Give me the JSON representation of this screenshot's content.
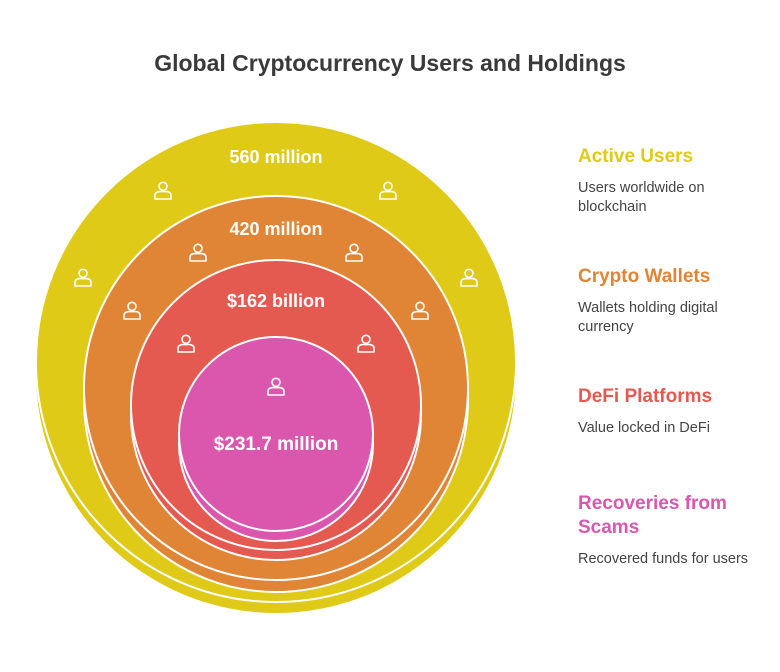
{
  "title": "Global Cryptocurrency Users and Holdings",
  "colors": {
    "active_users": "#DECA17",
    "crypto_wallets": "#E08435",
    "defi_platforms": "#E45A51",
    "recoveries": "#DB57AE"
  },
  "rings": [
    {
      "key": "active_users",
      "value_label": "560 million",
      "icon": "user-icon"
    },
    {
      "key": "crypto_wallets",
      "value_label": "420 million",
      "icon": "user-icon"
    },
    {
      "key": "defi_platforms",
      "value_label": "$162 billion",
      "icon": "user-icon"
    },
    {
      "key": "recoveries",
      "value_label": "$231.7 million",
      "icon": "user-icon"
    }
  ],
  "legend": [
    {
      "title": "Active Users",
      "description": "Users worldwide on blockchain"
    },
    {
      "title": "Crypto Wallets",
      "description": "Wallets holding digital currency"
    },
    {
      "title": "DeFi Platforms",
      "description": "Value locked in DeFi"
    },
    {
      "title": "Recoveries from Scams",
      "description": "Recovered funds for users"
    }
  ]
}
